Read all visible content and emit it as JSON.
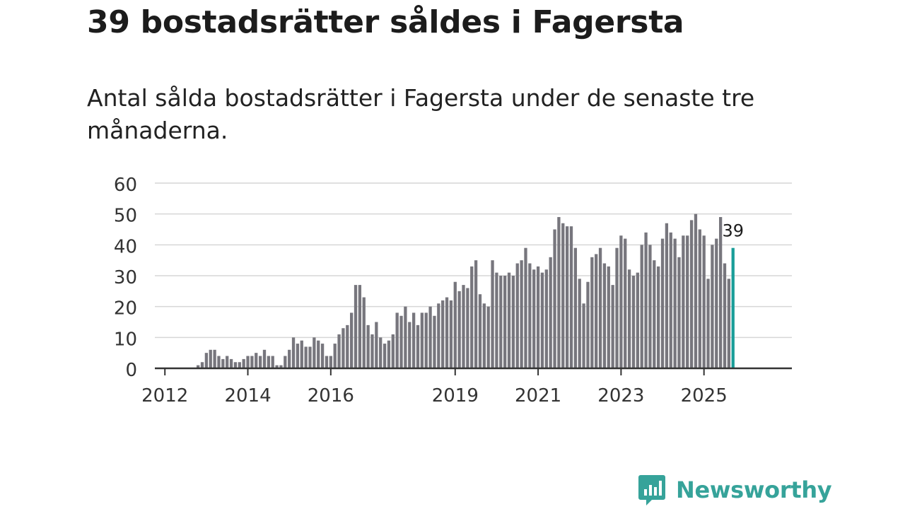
{
  "title": "39 bostadsrätter såldes i Fagersta",
  "subtitle": "Antal sålda bostadsrätter i Fagersta under de senaste tre månaderna.",
  "brand": {
    "name": "Newsworthy",
    "color": "#36a39a",
    "icon": "bar-chart-speech-bubble-icon"
  },
  "colors": {
    "bar": "#77767d",
    "highlight": "#1a9e99",
    "grid": "#d6d6d6",
    "axis": "#333333"
  },
  "chart_data": {
    "type": "bar",
    "title": "39 bostadsrätter såldes i Fagersta",
    "subtitle": "Antal sålda bostadsrätter i Fagersta under de senaste tre månaderna.",
    "xlabel": "",
    "ylabel": "",
    "ylim": [
      0,
      60
    ],
    "yticks": [
      0,
      10,
      20,
      30,
      40,
      50,
      60
    ],
    "xticks": [
      "2012",
      "2014",
      "2016",
      "2019",
      "2021",
      "2023",
      "2025"
    ],
    "xtick_index": [
      2,
      22,
      42,
      72,
      92,
      112,
      132
    ],
    "grid": true,
    "highlight": {
      "index": 139,
      "label": "39"
    },
    "values": [
      0,
      0,
      0,
      0,
      0,
      0,
      0,
      0,
      0,
      0,
      1,
      2,
      5,
      6,
      6,
      4,
      3,
      4,
      3,
      2,
      2,
      3,
      4,
      4,
      5,
      4,
      6,
      4,
      4,
      1,
      1,
      4,
      6,
      10,
      8,
      9,
      7,
      7,
      10,
      9,
      8,
      4,
      4,
      8,
      11,
      13,
      14,
      18,
      27,
      27,
      23,
      14,
      11,
      15,
      10,
      8,
      9,
      11,
      18,
      17,
      20,
      15,
      18,
      14,
      18,
      18,
      20,
      17,
      21,
      22,
      23,
      22,
      28,
      25,
      27,
      26,
      33,
      35,
      24,
      21,
      20,
      35,
      31,
      30,
      30,
      31,
      30,
      34,
      35,
      39,
      34,
      32,
      33,
      31,
      32,
      36,
      45,
      49,
      47,
      46,
      46,
      39,
      29,
      21,
      28,
      36,
      37,
      39,
      34,
      33,
      27,
      39,
      43,
      42,
      32,
      30,
      31,
      40,
      44,
      40,
      35,
      33,
      42,
      47,
      44,
      42,
      36,
      43,
      43,
      48,
      50,
      45,
      43,
      29,
      40,
      42,
      49,
      34,
      29,
      39
    ]
  }
}
